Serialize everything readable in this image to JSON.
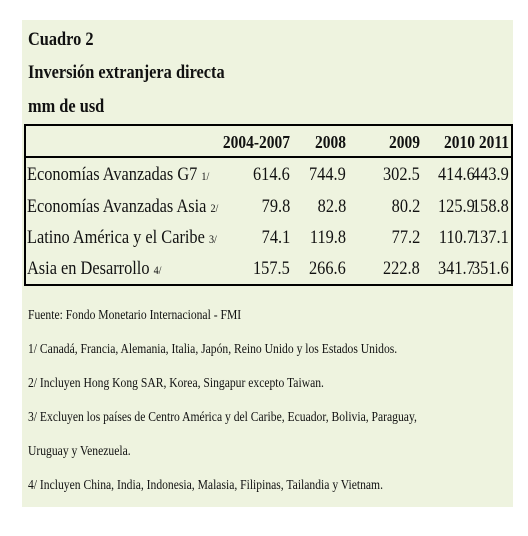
{
  "header": {
    "title": "Cuadro 2",
    "subtitle": "Inversión extranjera directa",
    "unit": "mm de usd"
  },
  "table": {
    "columns": [
      "2004-2007",
      "2008",
      "2009",
      "2010",
      "2011"
    ],
    "rows": [
      {
        "label": "Economías Avanzadas G7",
        "note": "1/",
        "values": [
          "614.6",
          "744.9",
          "302.5",
          "414.6",
          "443.9"
        ]
      },
      {
        "label": "Economías Avanzadas Asia",
        "note": "2/",
        "values": [
          "79.8",
          "82.8",
          "80.2",
          "125.9",
          "158.8"
        ]
      },
      {
        "label": "Latino América y el Caribe",
        "note": "3/",
        "values": [
          "74.1",
          "119.8",
          "77.2",
          "110.7",
          "137.1"
        ]
      },
      {
        "label": "Asia en Desarrollo",
        "note": "4/",
        "values": [
          "157.5",
          "266.6",
          "222.8",
          "341.7",
          "351.6"
        ]
      }
    ]
  },
  "footnotes": {
    "source": "Fuente: Fondo Monetario Internacional - FMI",
    "n1": "1/ Canadá, Francia, Alemania, Italia, Japón, Reino Unido y los Estados Unidos.",
    "n2": "2/ Incluyen Hong Kong SAR, Korea, Singapur excepto Taiwan.",
    "n3a": "3/ Excluyen los países de Centro América y del Caribe, Ecuador, Bolivia, Paraguay,",
    "n3b": "Uruguay y Venezuela.",
    "n4": "4/ Incluyen China, India, Indonesia, Malasia, Filipinas, Tailandia y Vietnam."
  }
}
